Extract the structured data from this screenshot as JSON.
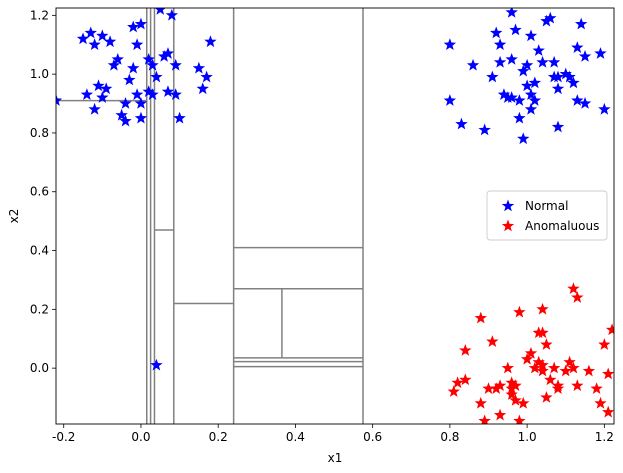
{
  "chart_data": {
    "type": "scatter",
    "xlabel": "x1",
    "ylabel": "x2",
    "xlim": [
      -0.22,
      1.225
    ],
    "ylim": [
      -0.19,
      1.225
    ],
    "xticks": [
      -0.2,
      0.0,
      0.2,
      0.4,
      0.6,
      0.8,
      1.0,
      1.2
    ],
    "xtick_labels": [
      "-0.2",
      "0.0",
      "0.2",
      "0.4",
      "0.6",
      "0.8",
      "1.0",
      "1.2"
    ],
    "yticks": [
      0.0,
      0.2,
      0.4,
      0.6,
      0.8,
      1.0,
      1.2
    ],
    "ytick_labels": [
      "0.0",
      "0.2",
      "0.4",
      "0.6",
      "0.8",
      "1.0",
      "1.2"
    ],
    "legend": {
      "placement": "center-right",
      "entries": [
        "Normal",
        "Anomaluous"
      ]
    },
    "colors": {
      "normal": "#0000ff",
      "anomalous": "#ff0000",
      "partition": "#808080"
    },
    "series": [
      {
        "name": "Normal",
        "marker": "star",
        "color": "#0000ff",
        "points": [
          [
            -0.22,
            0.91
          ],
          [
            -0.15,
            1.12
          ],
          [
            -0.14,
            0.93
          ],
          [
            -0.13,
            1.14
          ],
          [
            -0.12,
            1.1
          ],
          [
            -0.12,
            0.88
          ],
          [
            -0.11,
            0.96
          ],
          [
            -0.1,
            1.13
          ],
          [
            -0.1,
            0.92
          ],
          [
            -0.09,
            0.95
          ],
          [
            -0.08,
            1.11
          ],
          [
            -0.07,
            1.03
          ],
          [
            -0.06,
            1.05
          ],
          [
            -0.05,
            0.86
          ],
          [
            -0.04,
            0.84
          ],
          [
            -0.04,
            0.9
          ],
          [
            -0.03,
            0.98
          ],
          [
            -0.02,
            1.02
          ],
          [
            -0.02,
            1.16
          ],
          [
            -0.01,
            0.93
          ],
          [
            -0.01,
            1.1
          ],
          [
            0.0,
            0.9
          ],
          [
            0.0,
            1.17
          ],
          [
            0.0,
            0.85
          ],
          [
            0.02,
            0.94
          ],
          [
            0.02,
            1.05
          ],
          [
            0.03,
            1.03
          ],
          [
            0.03,
            0.93
          ],
          [
            0.04,
            0.99
          ],
          [
            0.05,
            1.22
          ],
          [
            0.06,
            1.06
          ],
          [
            0.07,
            1.07
          ],
          [
            0.07,
            0.94
          ],
          [
            0.08,
            1.2
          ],
          [
            0.09,
            1.03
          ],
          [
            0.09,
            0.93
          ],
          [
            0.1,
            0.85
          ],
          [
            0.15,
            1.02
          ],
          [
            0.16,
            0.95
          ],
          [
            0.17,
            0.99
          ],
          [
            0.18,
            1.11
          ],
          [
            0.04,
            0.01
          ],
          [
            0.8,
            1.1
          ],
          [
            0.8,
            0.91
          ],
          [
            0.83,
            0.83
          ],
          [
            0.86,
            1.03
          ],
          [
            0.89,
            0.81
          ],
          [
            0.91,
            0.99
          ],
          [
            0.92,
            1.14
          ],
          [
            0.93,
            1.1
          ],
          [
            0.93,
            1.04
          ],
          [
            0.94,
            0.93
          ],
          [
            0.95,
            0.92
          ],
          [
            0.96,
            1.21
          ],
          [
            0.96,
            1.05
          ],
          [
            0.96,
            0.92
          ],
          [
            0.97,
            1.15
          ],
          [
            0.98,
            0.91
          ],
          [
            0.98,
            0.85
          ],
          [
            0.99,
            0.78
          ],
          [
            0.99,
            1.01
          ],
          [
            1.0,
            1.03
          ],
          [
            1.0,
            0.96
          ],
          [
            1.01,
            0.88
          ],
          [
            1.01,
            1.13
          ],
          [
            1.01,
            0.93
          ],
          [
            1.02,
            0.97
          ],
          [
            1.02,
            0.91
          ],
          [
            1.03,
            1.08
          ],
          [
            1.04,
            1.04
          ],
          [
            1.05,
            1.18
          ],
          [
            1.06,
            1.19
          ],
          [
            1.07,
            1.04
          ],
          [
            1.07,
            0.99
          ],
          [
            1.08,
            0.99
          ],
          [
            1.08,
            0.95
          ],
          [
            1.08,
            0.82
          ],
          [
            1.1,
            1.0
          ],
          [
            1.11,
            0.99
          ],
          [
            1.12,
            0.97
          ],
          [
            1.13,
            0.91
          ],
          [
            1.13,
            1.09
          ],
          [
            1.14,
            1.17
          ],
          [
            1.15,
            1.06
          ],
          [
            1.15,
            0.9
          ],
          [
            1.19,
            1.07
          ],
          [
            1.2,
            0.88
          ]
        ]
      },
      {
        "name": "Anomaluous",
        "marker": "star",
        "color": "#ff0000",
        "points": [
          [
            0.81,
            -0.08
          ],
          [
            0.82,
            -0.05
          ],
          [
            0.84,
            -0.04
          ],
          [
            0.84,
            0.06
          ],
          [
            0.88,
            -0.12
          ],
          [
            0.88,
            0.17
          ],
          [
            0.89,
            -0.18
          ],
          [
            0.9,
            -0.07
          ],
          [
            0.91,
            0.09
          ],
          [
            0.92,
            -0.07
          ],
          [
            0.93,
            -0.06
          ],
          [
            0.93,
            -0.16
          ],
          [
            0.95,
            0.0
          ],
          [
            0.96,
            -0.05
          ],
          [
            0.96,
            -0.07
          ],
          [
            0.96,
            -0.09
          ],
          [
            0.97,
            -0.11
          ],
          [
            0.97,
            -0.06
          ],
          [
            0.98,
            -0.18
          ],
          [
            0.98,
            0.19
          ],
          [
            0.99,
            -0.12
          ],
          [
            1.0,
            0.03
          ],
          [
            1.01,
            0.05
          ],
          [
            1.02,
            0.0
          ],
          [
            1.03,
            0.02
          ],
          [
            1.03,
            0.12
          ],
          [
            1.04,
            0.01
          ],
          [
            1.04,
            -0.01
          ],
          [
            1.04,
            0.2
          ],
          [
            1.04,
            0.12
          ],
          [
            1.05,
            0.08
          ],
          [
            1.05,
            -0.1
          ],
          [
            1.06,
            -0.04
          ],
          [
            1.07,
            0.0
          ],
          [
            1.08,
            -0.06
          ],
          [
            1.08,
            -0.07
          ],
          [
            1.1,
            -0.01
          ],
          [
            1.11,
            0.02
          ],
          [
            1.12,
            0.0
          ],
          [
            1.12,
            0.27
          ],
          [
            1.13,
            0.24
          ],
          [
            1.13,
            -0.06
          ],
          [
            1.16,
            -0.01
          ],
          [
            1.18,
            -0.07
          ],
          [
            1.19,
            -0.12
          ],
          [
            1.2,
            0.08
          ],
          [
            1.21,
            -0.02
          ],
          [
            1.21,
            -0.15
          ],
          [
            1.22,
            0.13
          ]
        ]
      }
    ],
    "partitions": [
      [
        -0.22,
        0.91,
        0.015,
        0.91
      ],
      [
        0.015,
        -0.19,
        0.015,
        1.225
      ],
      [
        0.025,
        -0.19,
        0.025,
        1.225
      ],
      [
        0.035,
        -0.19,
        0.035,
        1.225
      ],
      [
        0.035,
        0.47,
        0.085,
        0.47
      ],
      [
        0.085,
        -0.19,
        0.085,
        1.225
      ],
      [
        0.085,
        0.22,
        0.24,
        0.22
      ],
      [
        0.24,
        -0.19,
        0.24,
        1.225
      ],
      [
        0.24,
        0.41,
        0.575,
        0.41
      ],
      [
        0.24,
        0.27,
        0.575,
        0.27
      ],
      [
        0.365,
        0.035,
        0.365,
        0.27
      ],
      [
        0.24,
        0.035,
        0.575,
        0.035
      ],
      [
        0.24,
        0.022,
        0.575,
        0.022
      ],
      [
        0.24,
        0.005,
        0.575,
        0.005
      ],
      [
        0.575,
        -0.19,
        0.575,
        1.225
      ]
    ]
  }
}
